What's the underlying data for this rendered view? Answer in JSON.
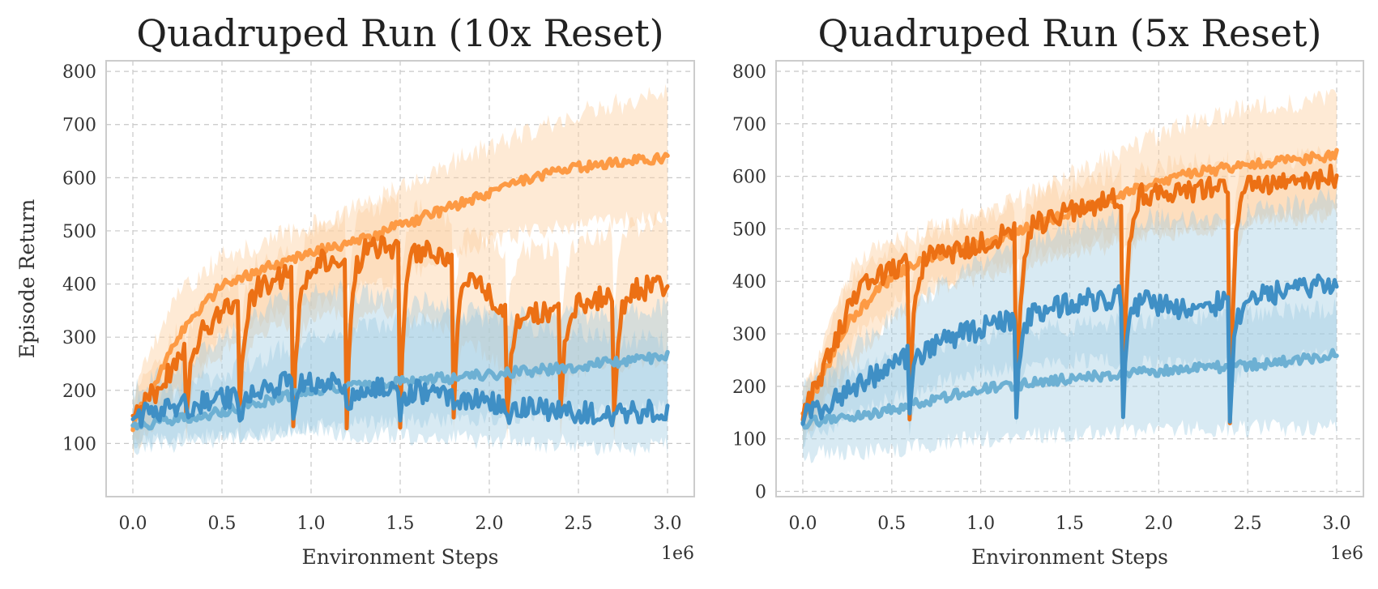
{
  "colors": {
    "orange_dark": "#ec7014",
    "orange_light": "#fd9a44",
    "orange_band": "#fdd0a2",
    "blue_dark": "#3f8fc5",
    "blue_light": "#6db0d3",
    "blue_band": "#9ecae1",
    "grid": "#c8c8c8",
    "frame": "#cccccc"
  },
  "chart_data": [
    {
      "type": "line",
      "title": "Quadruped Run (10x Reset)",
      "xlabel": "Environment Steps",
      "ylabel": "Episode Return",
      "x_exponent_label": "1e6",
      "xlim": [
        -0.15,
        3.15
      ],
      "ylim": [
        0,
        820
      ],
      "xticks": [
        0.0,
        0.5,
        1.0,
        1.5,
        2.0,
        2.5,
        3.0
      ],
      "xtick_labels": [
        "0.0",
        "0.5",
        "1.0",
        "1.5",
        "2.0",
        "2.5",
        "3.0"
      ],
      "yticks": [
        100,
        200,
        300,
        400,
        500,
        600,
        700,
        800
      ],
      "ytick_labels": [
        "100",
        "200",
        "300",
        "400",
        "500",
        "600",
        "700",
        "800"
      ],
      "grid": true,
      "reset_points": [
        0.3,
        0.6,
        0.9,
        1.2,
        1.5,
        1.8,
        2.1,
        2.4,
        2.7
      ],
      "series": [
        {
          "color_key": "orange_light",
          "band_color_key": "orange_band",
          "kind": "smooth",
          "x": [
            0.0,
            0.25,
            0.5,
            0.75,
            1.0,
            1.25,
            1.5,
            1.75,
            2.0,
            2.25,
            2.5,
            2.75,
            3.0
          ],
          "y": [
            135,
            300,
            400,
            430,
            460,
            480,
            510,
            540,
            570,
            600,
            620,
            630,
            640
          ],
          "band_low": [
            90,
            200,
            300,
            340,
            360,
            390,
            410,
            450,
            480,
            500,
            510,
            520,
            520
          ],
          "band_high": [
            190,
            380,
            450,
            480,
            510,
            540,
            580,
            620,
            660,
            690,
            720,
            740,
            760
          ]
        },
        {
          "color_key": "orange_dark",
          "band_color_key": "orange_band",
          "kind": "reset",
          "x": [
            0.0,
            0.3,
            0.6,
            0.9,
            1.2,
            1.5,
            1.8,
            2.1,
            2.4,
            2.7,
            3.0
          ],
          "y": [
            140,
            280,
            380,
            420,
            460,
            470,
            450,
            340,
            350,
            380,
            400
          ],
          "band_low": [
            100,
            210,
            300,
            330,
            350,
            350,
            310,
            240,
            230,
            250,
            260
          ],
          "band_high": [
            180,
            340,
            420,
            480,
            530,
            560,
            520,
            460,
            470,
            500,
            520
          ]
        },
        {
          "color_key": "blue_light",
          "band_color_key": "blue_band",
          "kind": "smooth",
          "x": [
            0.0,
            0.5,
            1.0,
            1.5,
            2.0,
            2.5,
            3.0
          ],
          "y": [
            130,
            160,
            200,
            215,
            230,
            245,
            265
          ],
          "band_low": [
            90,
            110,
            130,
            140,
            150,
            160,
            170
          ],
          "band_high": [
            180,
            230,
            300,
            330,
            340,
            340,
            360
          ]
        },
        {
          "color_key": "blue_dark",
          "band_color_key": "blue_band",
          "kind": "reset",
          "x": [
            0.0,
            0.3,
            0.6,
            0.9,
            1.2,
            1.5,
            1.8,
            2.1,
            2.4,
            2.7,
            3.0
          ],
          "y": [
            150,
            170,
            190,
            220,
            210,
            200,
            190,
            175,
            160,
            155,
            165
          ],
          "band_low": [
            100,
            110,
            120,
            130,
            120,
            115,
            110,
            100,
            95,
            90,
            95
          ],
          "band_high": [
            200,
            250,
            330,
            380,
            390,
            370,
            360,
            330,
            310,
            300,
            290
          ]
        }
      ]
    },
    {
      "type": "line",
      "title": "Quadruped Run (5x Reset)",
      "xlabel": "Environment Steps",
      "ylabel": "",
      "x_exponent_label": "1e6",
      "xlim": [
        -0.15,
        3.15
      ],
      "ylim": [
        -10,
        820
      ],
      "xticks": [
        0.0,
        0.5,
        1.0,
        1.5,
        2.0,
        2.5,
        3.0
      ],
      "xtick_labels": [
        "0.0",
        "0.5",
        "1.0",
        "1.5",
        "2.0",
        "2.5",
        "3.0"
      ],
      "yticks": [
        0,
        100,
        200,
        300,
        400,
        500,
        600,
        700,
        800
      ],
      "ytick_labels": [
        "0",
        "100",
        "200",
        "300",
        "400",
        "500",
        "600",
        "700",
        "800"
      ],
      "grid": true,
      "reset_points": [
        0.6,
        1.2,
        1.8,
        2.4
      ],
      "series": [
        {
          "color_key": "orange_light",
          "band_color_key": "orange_band",
          "kind": "smooth",
          "x": [
            0.0,
            0.25,
            0.5,
            0.75,
            1.0,
            1.25,
            1.5,
            1.75,
            2.0,
            2.25,
            2.5,
            2.75,
            3.0
          ],
          "y": [
            140,
            320,
            410,
            450,
            470,
            500,
            530,
            560,
            590,
            610,
            620,
            630,
            640
          ],
          "band_low": [
            100,
            230,
            330,
            380,
            410,
            430,
            450,
            470,
            490,
            500,
            510,
            520,
            530
          ],
          "band_high": [
            190,
            390,
            470,
            500,
            530,
            560,
            600,
            640,
            680,
            710,
            730,
            740,
            750
          ]
        },
        {
          "color_key": "orange_dark",
          "band_color_key": "orange_band",
          "kind": "reset",
          "x": [
            0.0,
            0.3,
            0.6,
            0.9,
            1.2,
            1.5,
            1.8,
            2.1,
            2.4,
            2.7,
            3.0
          ],
          "y": [
            140,
            380,
            440,
            460,
            500,
            530,
            560,
            570,
            580,
            590,
            600
          ],
          "band_low": [
            100,
            300,
            380,
            410,
            440,
            470,
            490,
            500,
            510,
            520,
            540
          ],
          "band_high": [
            180,
            440,
            490,
            510,
            550,
            580,
            610,
            620,
            630,
            630,
            640
          ]
        },
        {
          "color_key": "blue_light",
          "band_color_key": "blue_band",
          "kind": "smooth",
          "x": [
            0.0,
            0.5,
            1.0,
            1.5,
            2.0,
            2.5,
            3.0
          ],
          "y": [
            130,
            155,
            195,
            215,
            230,
            240,
            260
          ],
          "band_low": [
            70,
            80,
            100,
            110,
            120,
            120,
            120
          ],
          "band_high": [
            200,
            250,
            300,
            310,
            330,
            340,
            350
          ]
        },
        {
          "color_key": "blue_dark",
          "band_color_key": "blue_band",
          "kind": "reset",
          "x": [
            0.0,
            0.3,
            0.6,
            0.9,
            1.2,
            1.5,
            1.8,
            2.1,
            2.4,
            2.7,
            3.0
          ],
          "y": [
            140,
            200,
            260,
            300,
            330,
            360,
            370,
            350,
            360,
            380,
            400
          ],
          "band_low": [
            100,
            150,
            190,
            220,
            240,
            250,
            250,
            240,
            240,
            250,
            260
          ],
          "band_high": [
            190,
            280,
            350,
            420,
            470,
            500,
            520,
            520,
            530,
            540,
            560
          ]
        }
      ]
    }
  ]
}
